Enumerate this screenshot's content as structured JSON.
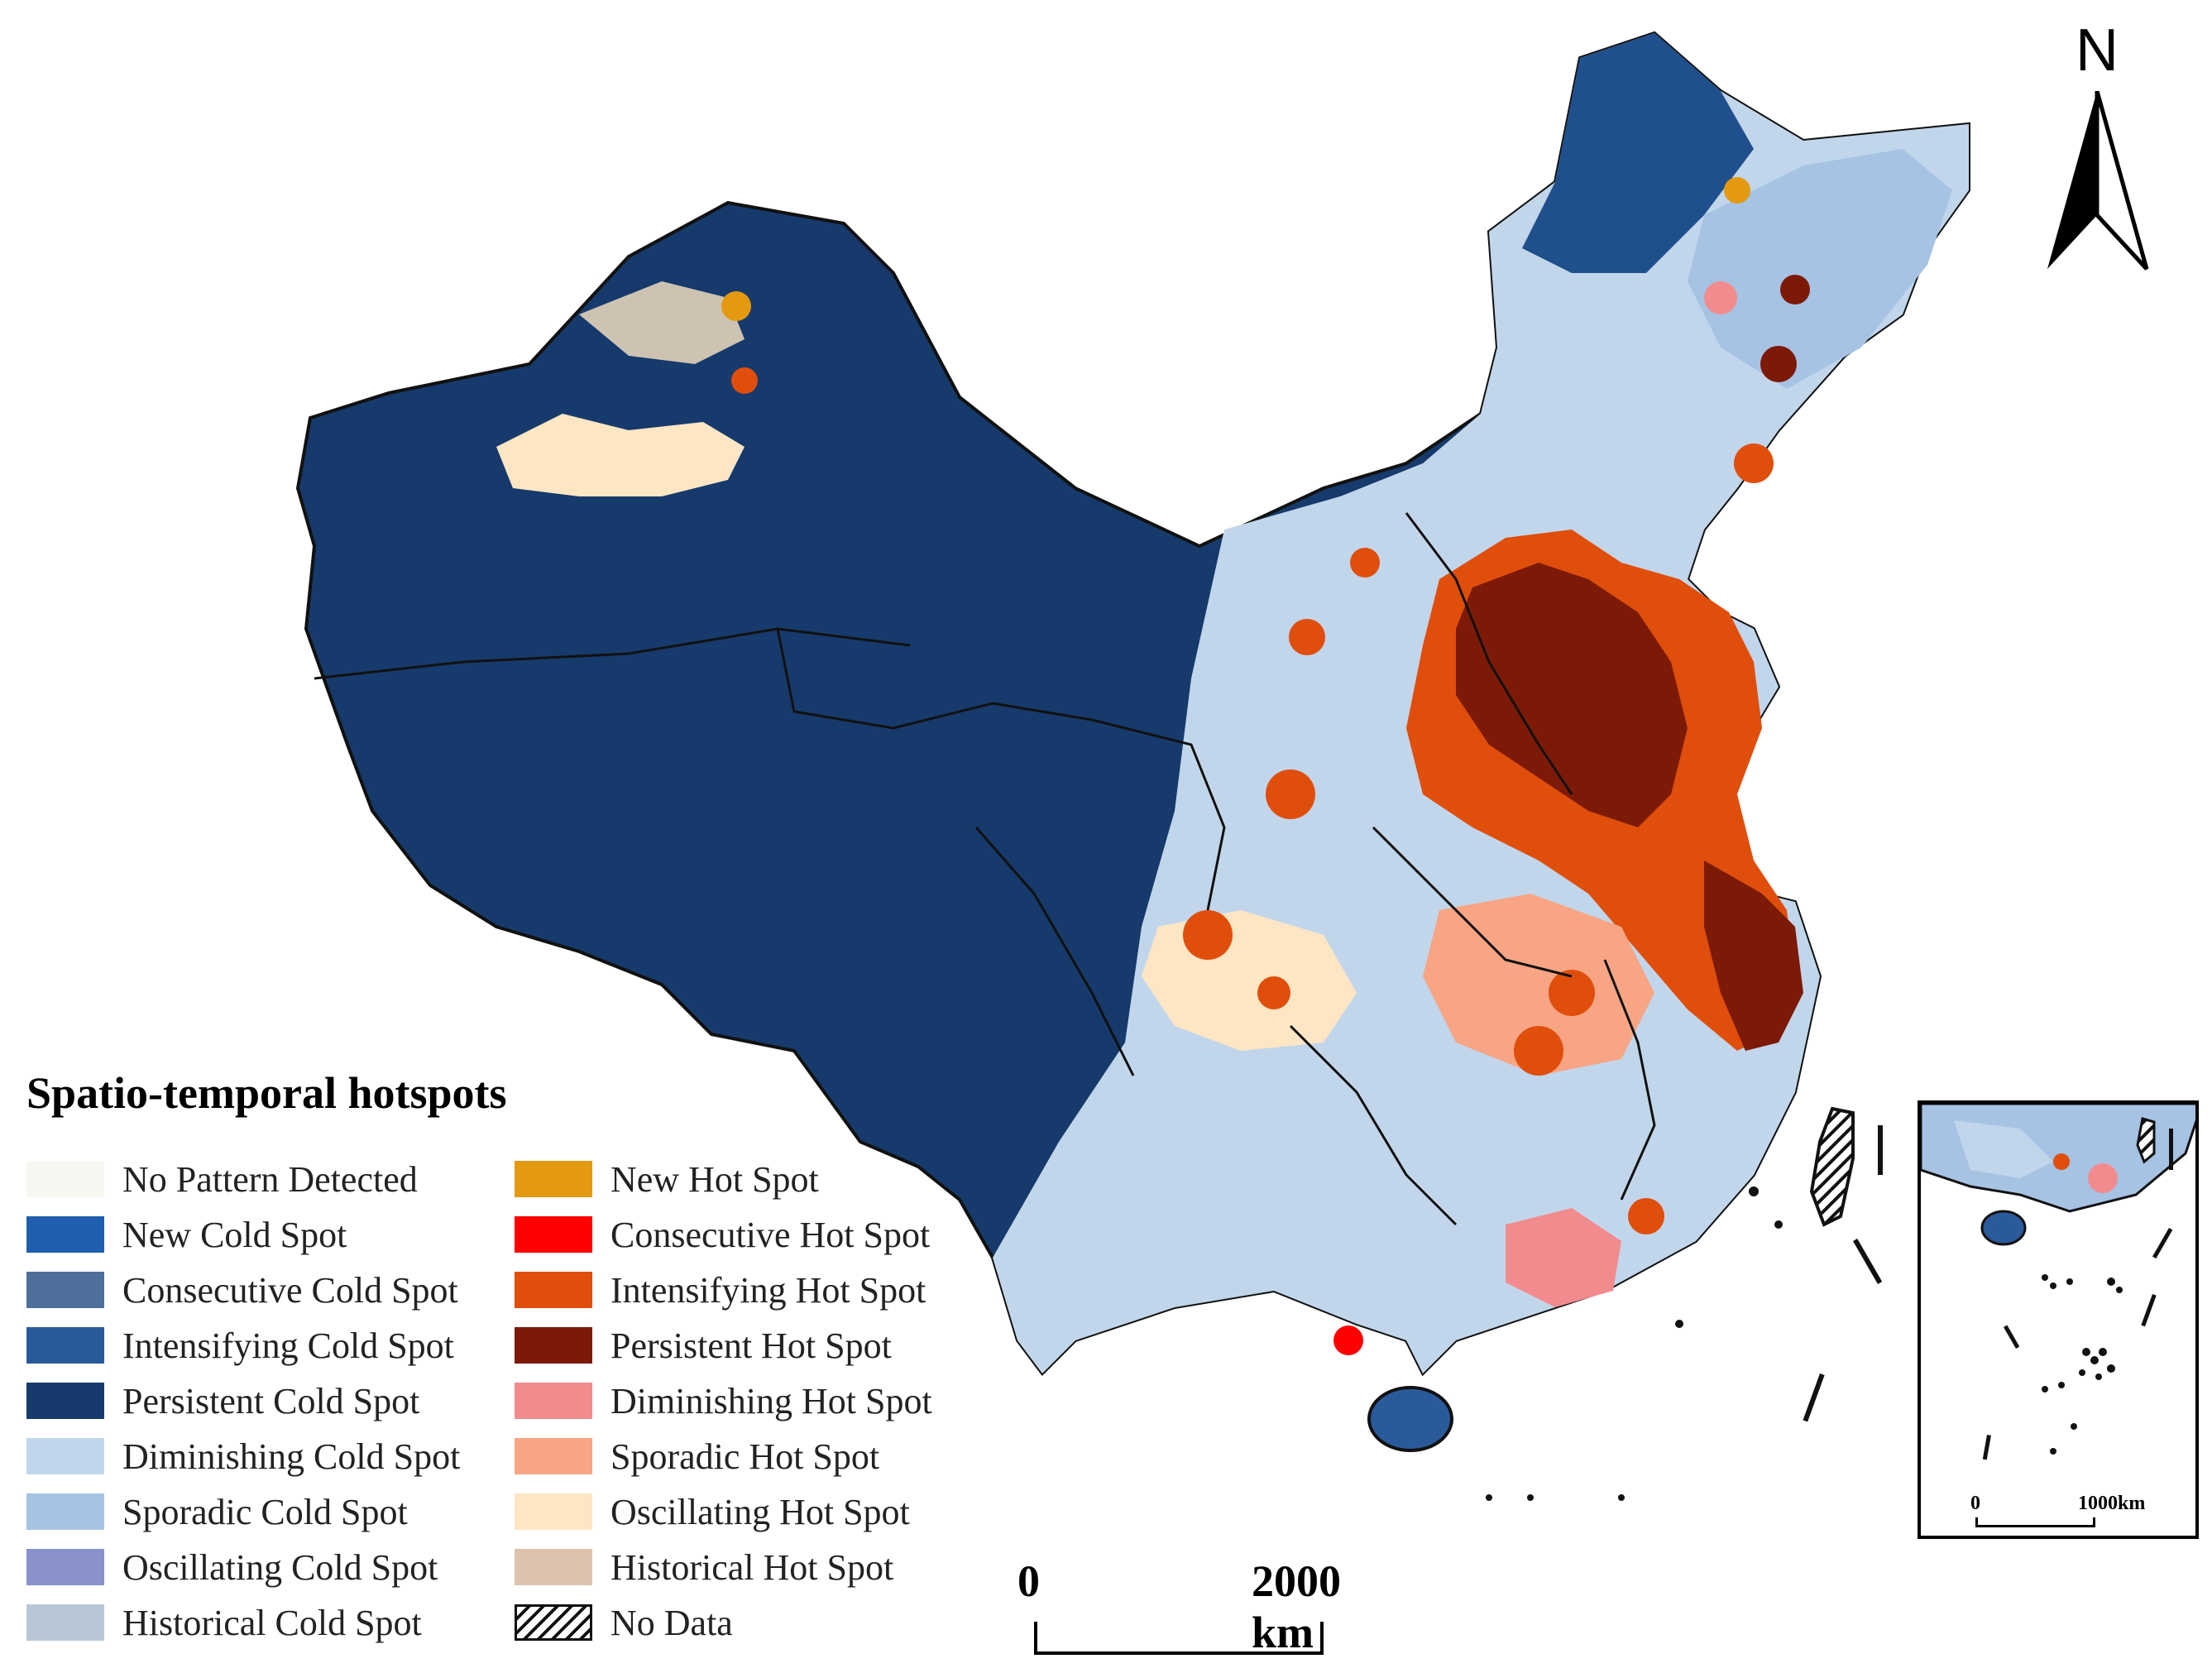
{
  "legend": {
    "title": "Spatio-temporal hotspots",
    "cold_items": [
      {
        "label": "No Pattern Detected",
        "color": "#f7f7f2"
      },
      {
        "label": "New Cold Spot",
        "color": "#1f5fae"
      },
      {
        "label": "Consecutive Cold Spot",
        "color": "#4d6f99"
      },
      {
        "label": "Intensifying Cold Spot",
        "color": "#2a5a9a"
      },
      {
        "label": "Persistent Cold Spot",
        "color": "#163a6b"
      },
      {
        "label": "Diminishing Cold Spot",
        "color": "#c2d6eb"
      },
      {
        "label": "Sporadic Cold Spot",
        "color": "#a6c3e4"
      },
      {
        "label": "Oscillating Cold Spot",
        "color": "#8a92cc"
      },
      {
        "label": "Historical Cold Spot",
        "color": "#b8c7d6"
      }
    ],
    "hot_items": [
      {
        "label": "New Hot Spot",
        "color": "#e39a10"
      },
      {
        "label": "Consecutive Hot Spot",
        "color": "#ff0000"
      },
      {
        "label": "Intensifying Hot Spot",
        "color": "#e04e0c"
      },
      {
        "label": "Persistent Hot Spot",
        "color": "#7d1a07"
      },
      {
        "label": "Diminishing Hot Spot",
        "color": "#f28b8e"
      },
      {
        "label": "Sporadic Hot Spot",
        "color": "#f7a584"
      },
      {
        "label": "Oscillating Hot Spot",
        "color": "#fde6c4"
      },
      {
        "label": "Historical Hot Spot",
        "color": "#ddc3ae"
      },
      {
        "label": "No Data",
        "color": "#ffffff",
        "pattern": "hatch"
      }
    ]
  },
  "north_arrow": {
    "label": "N"
  },
  "scale_bar": {
    "start_label": "0",
    "end_label": "2000 km"
  },
  "inset": {
    "start_label": "0",
    "end_label": "1000km"
  }
}
